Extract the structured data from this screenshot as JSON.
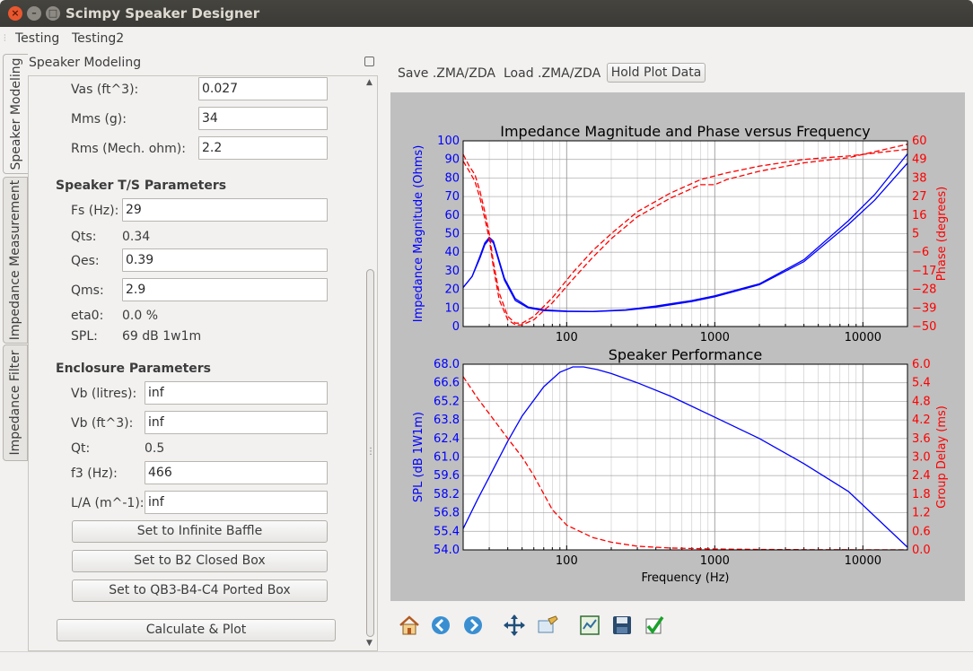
{
  "window": {
    "title": "Scimpy Speaker Designer"
  },
  "menu": [
    "Testing",
    "Testing2"
  ],
  "tabs": [
    "Speaker Modeling",
    "Impedance Measurement",
    "Impedance Filter"
  ],
  "panel": {
    "title": "Speaker Modeling",
    "fields_top": [
      {
        "label": "Vas (ft^3):",
        "value": "0.027"
      },
      {
        "label": "Mms (g):",
        "value": "34"
      },
      {
        "label": "Rms (Mech. ohm):",
        "value": "2.2"
      }
    ],
    "ts_header": "Speaker T/S Parameters",
    "fs": {
      "label": "Fs (Hz):",
      "value": "29"
    },
    "qts": {
      "label": "Qts:",
      "value": "0.34"
    },
    "qes": {
      "label": "Qes:",
      "value": "0.39"
    },
    "qms": {
      "label": "Qms:",
      "value": "2.9"
    },
    "eta0": {
      "label": "eta0:",
      "value": "0.0 %"
    },
    "spl": {
      "label": "SPL:",
      "value": "69 dB 1w1m"
    },
    "enc_header": "Enclosure Parameters",
    "vb_litres": {
      "label": "Vb (litres):",
      "value": "inf"
    },
    "vb_ft3": {
      "label": "Vb (ft^3):",
      "value": "inf"
    },
    "qt": {
      "label": "Qt:",
      "value": "0.5"
    },
    "f3": {
      "label": "f3 (Hz):",
      "value": "466"
    },
    "la": {
      "label": "L/A (m^-1):",
      "value": "inf"
    },
    "buttons": {
      "infinite_baffle": "Set to Infinite Baffle",
      "b2": "Set to B2 Closed Box",
      "qb3": "Set to QB3-B4-C4 Ported Box",
      "calc": "Calculate & Plot"
    }
  },
  "plot_toolbar": {
    "save": "Save .ZMA/ZDA",
    "load": "Load .ZMA/ZDA",
    "hold": "Hold Plot Data"
  },
  "colors": {
    "blue": "#0000ff",
    "red": "#ff0000",
    "plot_bg": "#bfbfbf"
  },
  "navbar_icons": [
    "home-icon",
    "back-icon",
    "forward-icon",
    "pan-icon",
    "zoom-icon",
    "subplots-icon",
    "save-icon",
    "check-icon"
  ],
  "chart_data": [
    {
      "type": "line",
      "title": "Impedance Magnitude and Phase versus Frequency",
      "xscale": "log",
      "xlim": [
        20,
        20000
      ],
      "xticks": [
        "100",
        "1000",
        "10000"
      ],
      "ylabel": "Impedance Magnitude (Ohms)",
      "ylim": [
        0,
        100
      ],
      "yticks": [
        "0",
        "10",
        "20",
        "30",
        "40",
        "50",
        "60",
        "70",
        "80",
        "90",
        "100"
      ],
      "y2label": "Phase (degrees)",
      "y2lim": [
        -50,
        60
      ],
      "y2ticks": [
        "−50",
        "−39",
        "−28",
        "−17",
        "−6",
        "5",
        "16",
        "27",
        "38",
        "49",
        "60"
      ],
      "grid": true,
      "series": [
        {
          "color": "#0000ff",
          "style": "solid",
          "axis": "left",
          "x": [
            20,
            23,
            26,
            28,
            30,
            32,
            34,
            38,
            45,
            55,
            70,
            100,
            150,
            250,
            400,
            700,
            1000,
            2000,
            4000,
            8000,
            12000,
            20000
          ],
          "y": [
            21,
            27,
            37,
            44,
            47,
            45,
            38,
            25,
            14,
            10,
            8.6,
            8.1,
            8.0,
            8.8,
            10.5,
            13.5,
            16,
            22.5,
            35,
            55,
            68,
            88
          ]
        },
        {
          "color": "#0000ff",
          "style": "solid",
          "axis": "left",
          "x": [
            20,
            23,
            26,
            28,
            30,
            32,
            34,
            38,
            45,
            55,
            70,
            100,
            150,
            250,
            400,
            700,
            1000,
            2000,
            4000,
            8000,
            12000,
            20000
          ],
          "y": [
            21,
            27,
            38,
            45,
            48,
            46,
            39,
            26,
            15,
            10.5,
            9,
            8.3,
            8.1,
            9,
            11,
            14,
            16.5,
            23,
            36,
            57,
            71,
            93
          ]
        },
        {
          "color": "#ff0000",
          "style": "dashed",
          "axis": "right",
          "x": [
            20,
            22,
            24,
            26,
            28,
            30,
            32,
            35,
            40,
            45,
            50,
            60,
            80,
            110,
            150,
            200,
            300,
            500,
            800,
            1200,
            2000,
            4000,
            8000,
            20000
          ],
          "y": [
            52,
            45,
            40,
            30,
            18,
            5,
            -12,
            -30,
            -44,
            -48,
            -48,
            -44,
            -33,
            -18,
            -5,
            5,
            18,
            29,
            37,
            41,
            45,
            49,
            51,
            55
          ]
        },
        {
          "color": "#ff0000",
          "style": "dashed",
          "axis": "right",
          "x": [
            20,
            22,
            24,
            26,
            28,
            30,
            32,
            35,
            40,
            45,
            50,
            60,
            80,
            110,
            150,
            200,
            300,
            500,
            800,
            1000,
            1200,
            2000,
            4000,
            8000,
            20000
          ],
          "y": [
            48,
            42,
            36,
            26,
            14,
            2,
            -15,
            -34,
            -46,
            -49,
            -49,
            -46,
            -36,
            -22,
            -9,
            2,
            15,
            26,
            34,
            34,
            37,
            42,
            47,
            50,
            58
          ]
        }
      ]
    },
    {
      "type": "line",
      "title": "Speaker Performance",
      "xscale": "log",
      "xlim": [
        20,
        20000
      ],
      "xticks": [
        "100",
        "1000",
        "10000"
      ],
      "xlabel": "Frequency (Hz)",
      "ylabel": "SPL (dB 1W1m)",
      "ylim": [
        54.0,
        68.0
      ],
      "yticks": [
        "54.0",
        "55.4",
        "56.8",
        "58.2",
        "59.6",
        "61.0",
        "62.4",
        "63.8",
        "65.2",
        "66.6",
        "68.0"
      ],
      "y2label": "Group Delay (ms)",
      "y2lim": [
        0,
        6
      ],
      "y2ticks": [
        "0.0",
        "0.6",
        "1.2",
        "1.8",
        "2.4",
        "3.0",
        "3.6",
        "4.2",
        "4.8",
        "5.4",
        "6.0"
      ],
      "grid": true,
      "series": [
        {
          "color": "#0000ff",
          "style": "solid",
          "axis": "left",
          "x": [
            20,
            25,
            30,
            40,
            50,
            70,
            90,
            110,
            130,
            160,
            200,
            300,
            500,
            1000,
            2000,
            4000,
            8000,
            20000
          ],
          "y": [
            55.6,
            57.8,
            59.5,
            62.2,
            64.1,
            66.3,
            67.4,
            67.8,
            67.8,
            67.6,
            67.3,
            66.6,
            65.6,
            64.0,
            62.4,
            60.5,
            58.4,
            54.2
          ]
        },
        {
          "color": "#ff0000",
          "style": "dashed",
          "axis": "right",
          "x": [
            20,
            25,
            30,
            40,
            50,
            60,
            80,
            100,
            150,
            200,
            300,
            500,
            1000,
            2000,
            5000,
            20000
          ],
          "y": [
            5.6,
            4.9,
            4.4,
            3.6,
            3.0,
            2.4,
            1.3,
            0.8,
            0.4,
            0.25,
            0.12,
            0.06,
            0.03,
            0.015,
            0.006,
            0.002
          ]
        }
      ]
    }
  ]
}
